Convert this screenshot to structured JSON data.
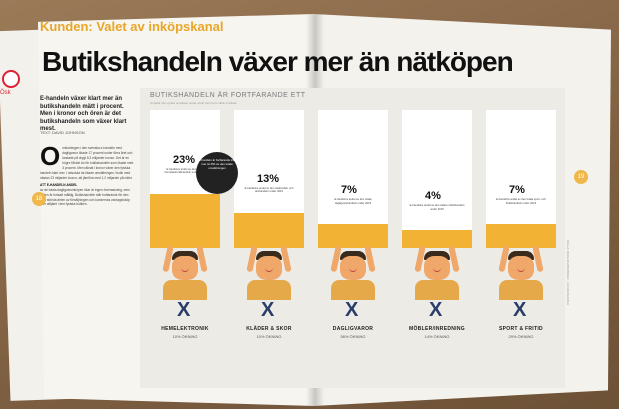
{
  "section": "Kunden: Valet av inköpskanal",
  "headline": "Butikshandeln växer mer än nätköpen",
  "intro": "E-handeln växer klart mer än butikshandeln mätt i procent. Men i kronor och ören är det butikshandeln som växer klart mest.",
  "byline": "TEXT: DAVID JOHNSON",
  "body_dropcap": "O",
  "body_text": "mslutningen i den svenska e-handeln med dagligvaror ökade 17 procent under förra året och landade på drygt 8,3 miljarder kronor. Det är en högre tillväxt än för butikshandeln som ökade med 3 procent. Men räknat i kronor växer den fysiska handeln klart mer. I absoluta tal ökade omsättningen i butik med nästan 23 miljarder kronor, att jämföra med 1,2 miljarder på nätet.",
  "body_subhead": "ATT E-HANDELN ANDEL",
  "body_text2": "av de totala dagligvaruinköpen ökar är ingen överraskning, men takten är fortsatt måttlig. Butikshandeln står fortfarande för den allra största delen av försäljningen och kundernas vardagsinköp sker alltjämt i den fysiska butiken.",
  "side_label": "Ösk",
  "page_num_left": "18",
  "page_num_right": "19",
  "graphic_title": "BUTIKSHANDELN ÄR FORTFARANDE ETT",
  "graphic_sub": "Ungefär så mycket omsättes under ett år inom fem olika områden",
  "bubble": "E-handeln är fortfarande inte mer än 8% av den totala omsättningen",
  "side_note": "KÄLLA: DAGLIGVARUINDEX · HUI RESEARCH",
  "chart_data": {
    "type": "bar",
    "categories": [
      "HEMELEKTRONIK",
      "KLÄDER & SKOR",
      "DAGLIGVAROR",
      "MÖBLER/INREDNING",
      "SPORT & FRITID"
    ],
    "values": [
      23,
      13,
      7,
      4,
      7
    ],
    "labels": [
      "23%",
      "13%",
      "7%",
      "4%",
      "7%"
    ],
    "growth": [
      "10% ÖKNING",
      "10% ÖKNING",
      "56% ÖKNING",
      "14% ÖKNING",
      "29% ÖKNING"
    ],
    "desc": [
      "E-handelns andel av den totala hemelektronikhandeln under 2015",
      "E-handelns andel av den totala kläd- och skohandeln under 2015",
      "E-handelns andel av den totala dagligvaruhandeln under 2015",
      "E-handelns andel av den totala möbelhandeln under 2015",
      "E-handelns andel av den totala sport- och fritidshandeln under 2015"
    ],
    "ylim": [
      0,
      25
    ]
  },
  "colors": {
    "accent": "#f2b234",
    "headline": "#111111",
    "legs": "#2a3d6a"
  }
}
